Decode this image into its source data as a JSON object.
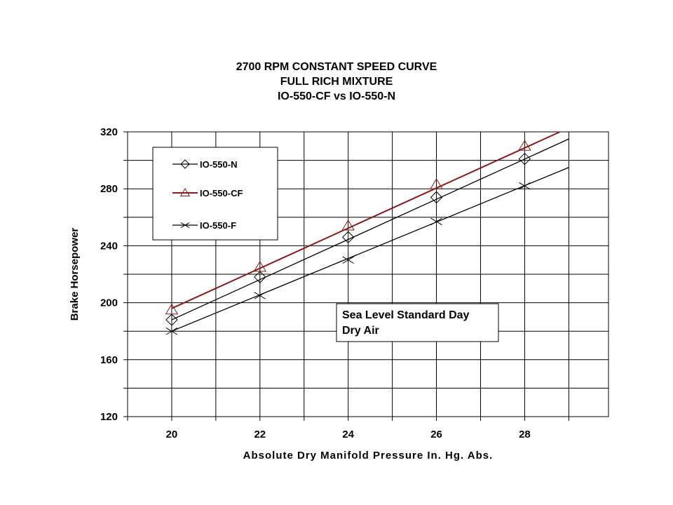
{
  "chart_data": {
    "type": "line",
    "title_lines": [
      "2700 RPM CONSTANT SPEED CURVE",
      "FULL RICH MIXTURE",
      "IO-550-CF vs IO-550-N"
    ],
    "xlabel": "Absolute Dry Manifold Pressure In. Hg. Abs.",
    "ylabel": "Brake Horsepower",
    "xlim": [
      19,
      29.9
    ],
    "ylim": [
      120,
      320
    ],
    "xticks": [
      20,
      22,
      24,
      26,
      28
    ],
    "yticks": [
      120,
      160,
      200,
      240,
      280,
      320
    ],
    "grid": true,
    "legend_position": "top-left",
    "series": [
      {
        "name": "IO-550-N",
        "marker": "diamond",
        "color": "#000000",
        "points": [
          [
            20,
            188
          ],
          [
            22,
            218
          ],
          [
            24,
            246
          ],
          [
            26,
            274
          ],
          [
            28,
            301
          ]
        ],
        "fit_line": [
          [
            20,
            188
          ],
          [
            29,
            315
          ]
        ]
      },
      {
        "name": "IO-550-CF",
        "marker": "triangle",
        "color": "#8b1a1a",
        "points": [
          [
            20,
            195
          ],
          [
            22,
            225
          ],
          [
            24,
            254
          ],
          [
            26,
            283
          ],
          [
            28,
            310
          ]
        ],
        "fit_line": [
          [
            20,
            196
          ],
          [
            28.8,
            320
          ]
        ]
      },
      {
        "name": "IO-550-F",
        "marker": "x",
        "color": "#000000",
        "points": [
          [
            20,
            180
          ],
          [
            22,
            205
          ],
          [
            24,
            230
          ],
          [
            26,
            257
          ],
          [
            28,
            282
          ]
        ],
        "fit_line": [
          [
            20,
            180
          ],
          [
            29,
            295
          ]
        ]
      }
    ],
    "annotation": {
      "lines": [
        "Sea Level Standard Day",
        "Dry Air"
      ]
    }
  }
}
